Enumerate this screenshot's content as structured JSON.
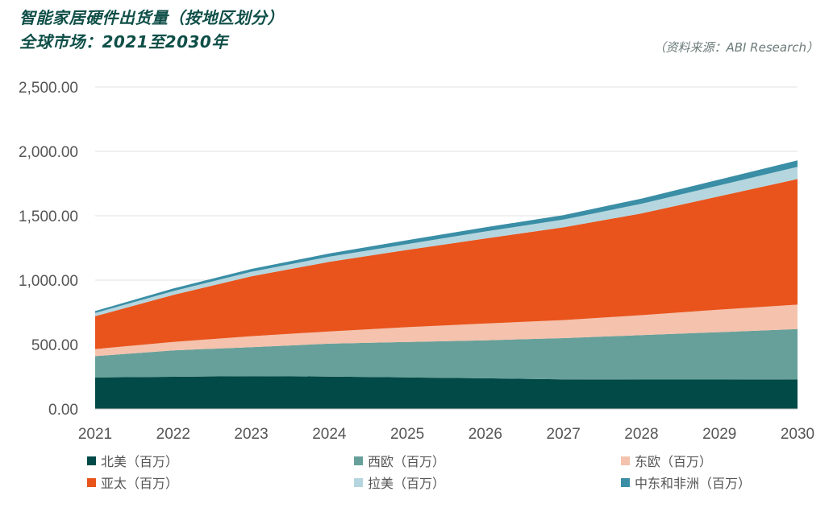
{
  "title_line1": "智能家居硬件出货量（按地区划分）",
  "title_line2": "全球市场：2021至2030年",
  "source": "（资料来源：ABI Research）",
  "chart_data": {
    "type": "area",
    "stacked": true,
    "title": "智能家居硬件出货量（按地区划分） 全球市场：2021至2030年",
    "xlabel": "",
    "ylabel": "",
    "x": [
      "2021",
      "2022",
      "2023",
      "2024",
      "2025",
      "2026",
      "2027",
      "2028",
      "2029",
      "2030"
    ],
    "ylim": [
      0,
      2500
    ],
    "yticks": [
      0,
      500,
      1000,
      1500,
      2000,
      2500
    ],
    "ytick_labels": [
      "0.00",
      "500.00",
      "1,000.00",
      "1,500.00",
      "2,000.00",
      "2,500.00"
    ],
    "grid": true,
    "legend_position": "bottom",
    "series": [
      {
        "name": "北美（百万）",
        "color": "#024a47",
        "values": [
          245,
          250,
          255,
          252,
          245,
          238,
          230,
          228,
          228,
          230
        ]
      },
      {
        "name": "西欧（百万）",
        "color": "#67a09a",
        "values": [
          165,
          205,
          225,
          255,
          275,
          295,
          320,
          345,
          368,
          390
        ]
      },
      {
        "name": "东欧（百万）",
        "color": "#f4c2ad",
        "values": [
          55,
          65,
          85,
          95,
          115,
          130,
          140,
          155,
          175,
          190
        ]
      },
      {
        "name": "亚太（百万）",
        "color": "#e8541c",
        "values": [
          255,
          365,
          465,
          540,
          600,
          660,
          720,
          790,
          880,
          975
        ]
      },
      {
        "name": "拉美（百万）",
        "color": "#b5d6de",
        "values": [
          25,
          30,
          35,
          40,
          45,
          55,
          60,
          75,
          85,
          95
        ]
      },
      {
        "name": "中东和非洲（百万）",
        "color": "#3a8ea6",
        "values": [
          15,
          20,
          22,
          25,
          30,
          32,
          35,
          40,
          45,
          50
        ]
      }
    ]
  }
}
